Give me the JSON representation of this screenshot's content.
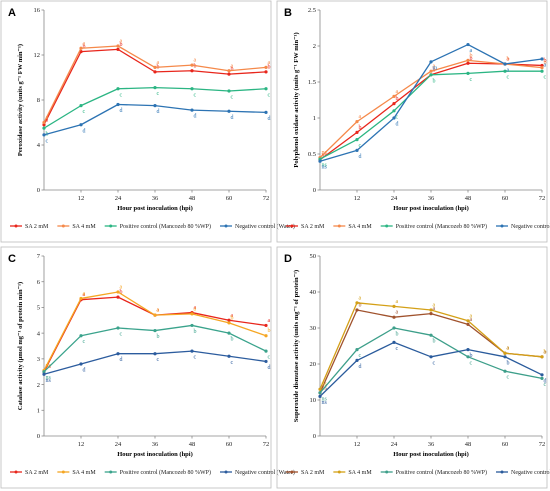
{
  "chart_data": [
    {
      "type": "line",
      "panel_label": "A",
      "xlabel": "Hour post inoculation (hpi)",
      "ylabel": "Peroxidase activity (units g⁻¹ FW min⁻¹)",
      "x": [
        0,
        12,
        24,
        36,
        48,
        60,
        72
      ],
      "ylim": [
        0,
        16
      ],
      "yticks": [
        0,
        4,
        8,
        12,
        16
      ],
      "grid": false,
      "legend": "bottom",
      "series": [
        {
          "name": "SA 2 mM",
          "color": "#e8261c",
          "values": [
            5.8,
            12.3,
            12.5,
            10.5,
            10.6,
            10.3,
            10.5
          ],
          "labels": [
            "a",
            "b",
            "b",
            "b",
            "b",
            "b",
            "b"
          ]
        },
        {
          "name": "SA 4 mM",
          "color": "#f5894a",
          "values": [
            6.0,
            12.6,
            12.8,
            10.9,
            11.1,
            10.6,
            10.9
          ],
          "labels": [
            "a",
            "a",
            "a",
            "a",
            "a",
            "a",
            "a"
          ]
        },
        {
          "name": "Positive control (Mancozeb 80 %WP)",
          "color": "#2bb583",
          "values": [
            5.5,
            7.5,
            9.0,
            9.1,
            9.0,
            8.8,
            9.0
          ],
          "labels": [
            "b",
            "c",
            "c",
            "c",
            "c",
            "c",
            "c"
          ]
        },
        {
          "name": "Negative control (Water)",
          "color": "#2c73b3",
          "values": [
            4.9,
            5.8,
            7.6,
            7.5,
            7.1,
            7.0,
            6.9
          ],
          "labels": [
            "c",
            "d",
            "d",
            "d",
            "d",
            "d",
            "d"
          ]
        }
      ]
    },
    {
      "type": "line",
      "panel_label": "B",
      "xlabel": "Hour post inoculation (hpi)",
      "ylabel": "Polyphenol oxidase activity (units g⁻¹ FW min⁻¹)",
      "x": [
        0,
        12,
        24,
        36,
        48,
        60,
        72
      ],
      "ylim": [
        0,
        2.5
      ],
      "yticks": [
        0,
        0.5,
        1,
        1.5,
        2,
        2.5
      ],
      "grid": false,
      "legend": "bottom",
      "series": [
        {
          "name": "SA 2 mM",
          "color": "#e8261c",
          "values": [
            0.42,
            0.8,
            1.2,
            1.6,
            1.76,
            1.75,
            1.73
          ],
          "labels": [
            "ns",
            "b",
            "b",
            "b",
            "b",
            "a",
            "b"
          ]
        },
        {
          "name": "SA 4 mM",
          "color": "#f5894a",
          "values": [
            0.45,
            0.95,
            1.3,
            1.65,
            1.8,
            1.75,
            1.7
          ],
          "labels": [
            "ns",
            "a",
            "a",
            "a",
            "b",
            "b",
            "b"
          ]
        },
        {
          "name": "Positive control (Mancozeb 80 %WP)",
          "color": "#2bb583",
          "values": [
            0.43,
            0.7,
            1.1,
            1.6,
            1.62,
            1.65,
            1.65
          ],
          "labels": [
            "ns",
            "c",
            "c",
            "b",
            "c",
            "c",
            "c"
          ]
        },
        {
          "name": "Negative control (Water)",
          "color": "#2c73b3",
          "values": [
            0.4,
            0.55,
            1.0,
            1.78,
            2.02,
            1.75,
            1.82
          ],
          "labels": [
            "ns",
            "d",
            "d",
            "m",
            "a",
            "a",
            "a"
          ]
        }
      ]
    },
    {
      "type": "line",
      "panel_label": "C",
      "xlabel": "Hour post inoculation (hpi)",
      "ylabel": "Catalase activity (μmol mg⁻¹ of protein min⁻¹)",
      "x": [
        0,
        12,
        24,
        36,
        48,
        60,
        72
      ],
      "ylim": [
        0,
        7
      ],
      "yticks": [
        0,
        1,
        2,
        3,
        4,
        5,
        6,
        7
      ],
      "grid": false,
      "legend": "bottom",
      "series": [
        {
          "name": "SA 2 mM",
          "color": "#e8261c",
          "values": [
            2.5,
            5.3,
            5.4,
            4.7,
            4.8,
            4.5,
            4.3
          ],
          "labels": [
            "ns",
            "a",
            "b",
            "a",
            "a",
            "a",
            "a"
          ]
        },
        {
          "name": "SA 4 mM",
          "color": "#f5a623",
          "values": [
            2.55,
            5.35,
            5.6,
            4.7,
            4.75,
            4.4,
            3.9
          ],
          "labels": [
            "ns",
            "a",
            "a",
            "a",
            "a",
            "b",
            "b"
          ]
        },
        {
          "name": "Positive control (Mancozeb 80 %WP)",
          "color": "#3aa38c",
          "values": [
            2.5,
            3.9,
            4.2,
            4.1,
            4.3,
            4.0,
            3.3
          ],
          "labels": [
            "ns",
            "c",
            "c",
            "b",
            "b",
            "b",
            "c"
          ]
        },
        {
          "name": "Negative control (Water)",
          "color": "#2c5c9e",
          "values": [
            2.4,
            2.8,
            3.2,
            3.2,
            3.3,
            3.1,
            2.9
          ],
          "labels": [
            "ns",
            "d",
            "d",
            "c",
            "c",
            "c",
            "d"
          ]
        }
      ]
    },
    {
      "type": "line",
      "panel_label": "D",
      "xlabel": "Hour post inoculation (hpi)",
      "ylabel": "Superoxide dismutase activity (units mg⁻¹ of protein⁻¹)",
      "x": [
        0,
        12,
        24,
        36,
        48,
        60,
        72
      ],
      "ylim": [
        0,
        50
      ],
      "yticks": [
        0,
        10,
        20,
        30,
        40,
        50
      ],
      "grid": false,
      "legend": "bottom",
      "series": [
        {
          "name": "SA 2 mM",
          "color": "#a0522d",
          "values": [
            12,
            35,
            33,
            34,
            31,
            23,
            22
          ],
          "labels": [
            "ns",
            "b",
            "a",
            "a",
            "a",
            "a",
            "a"
          ]
        },
        {
          "name": "SA 4 mM",
          "color": "#d4a017",
          "values": [
            13,
            37,
            36,
            35,
            32,
            23,
            22
          ],
          "labels": [
            "ns",
            "a",
            "a",
            "a",
            "a",
            "a",
            "b"
          ]
        },
        {
          "name": "Positive control (Mancozeb 80 %WP)",
          "color": "#3d9f8a",
          "values": [
            12,
            24,
            30,
            28,
            22,
            18,
            16
          ],
          "labels": [
            "ns",
            "c",
            "b",
            "b",
            "c",
            "c",
            "c"
          ]
        },
        {
          "name": "Negative control (Water)",
          "color": "#2a5b9c",
          "values": [
            11,
            21,
            26,
            22,
            24,
            22,
            17
          ],
          "labels": [
            "ns",
            "d",
            "c",
            "c",
            "b",
            "b",
            "d"
          ]
        }
      ]
    }
  ]
}
